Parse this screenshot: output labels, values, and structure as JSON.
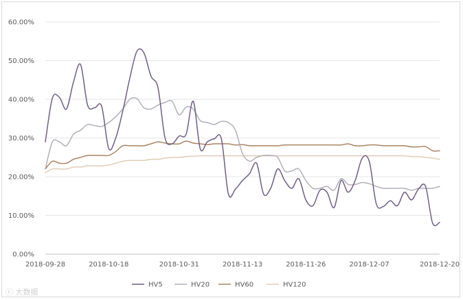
{
  "chart_data": {
    "type": "line",
    "x_labels": [
      "2018-09-28",
      "2018-10-18",
      "2018-10-31",
      "2018-11-13",
      "2018-11-26",
      "2018-12-07",
      "2018-12-20"
    ],
    "x_count": 57,
    "x_label_positions": [
      0,
      9,
      19,
      28,
      37,
      46,
      56
    ],
    "ylim": [
      0,
      60
    ],
    "y_ticks": [
      "0.00%",
      "10.00%",
      "20.00%",
      "30.00%",
      "40.00%",
      "50.00%",
      "60.00%"
    ],
    "grid": "horizontal",
    "legend_position": "bottom",
    "series": [
      {
        "name": "HV5",
        "color": "#6f5d82",
        "values": [
          29.0,
          40.3,
          40.5,
          37.5,
          44.5,
          49.0,
          38.5,
          37.8,
          38.2,
          27.3,
          30.0,
          37.0,
          45.5,
          52.4,
          52.0,
          46.0,
          43.0,
          30.0,
          28.5,
          30.5,
          31.0,
          39.5,
          27.2,
          29.0,
          29.8,
          29.8,
          15.5,
          16.8,
          19.0,
          20.8,
          23.5,
          15.5,
          17.0,
          22.0,
          19.0,
          17.0,
          19.5,
          14.0,
          12.5,
          16.5,
          16.0,
          12.0,
          19.0,
          16.0,
          19.0,
          24.8,
          24.0,
          13.0,
          12.3,
          13.8,
          12.5,
          16.0,
          14.0,
          16.8,
          17.5,
          8.0,
          8.2
        ]
      },
      {
        "name": "HV20",
        "color": "#b3aeb8",
        "values": [
          22.0,
          29.0,
          29.0,
          28.0,
          31.0,
          32.0,
          33.5,
          33.2,
          33.0,
          34.0,
          35.5,
          37.5,
          40.0,
          40.2,
          37.8,
          37.5,
          38.5,
          39.2,
          39.5,
          36.0,
          38.0,
          37.5,
          34.5,
          34.0,
          33.5,
          34.3,
          34.0,
          32.0,
          26.0,
          24.0,
          25.0,
          25.5,
          25.5,
          25.0,
          21.5,
          21.5,
          22.0,
          19.0,
          17.0,
          17.0,
          17.5,
          16.5,
          19.5,
          18.0,
          18.0,
          18.5,
          18.2,
          17.5,
          17.0,
          17.0,
          17.0,
          17.0,
          16.5,
          17.0,
          17.0,
          17.0,
          17.5
        ]
      },
      {
        "name": "HV60",
        "color": "#a88463",
        "values": [
          22.0,
          24.0,
          23.5,
          23.5,
          24.5,
          25.0,
          25.5,
          25.5,
          25.5,
          25.5,
          26.5,
          28.0,
          28.0,
          28.0,
          28.0,
          28.5,
          29.0,
          28.7,
          28.5,
          28.5,
          29.2,
          28.7,
          28.5,
          28.3,
          28.5,
          28.5,
          28.5,
          28.2,
          28.3,
          28.0,
          28.0,
          28.0,
          28.0,
          28.0,
          28.2,
          28.2,
          28.2,
          28.2,
          28.2,
          28.2,
          28.2,
          28.2,
          28.2,
          28.5,
          28.0,
          28.0,
          28.2,
          28.2,
          28.0,
          28.0,
          28.0,
          28.0,
          27.7,
          27.7,
          27.8,
          26.7,
          26.7
        ]
      },
      {
        "name": "HV120",
        "color": "#e0cdb8",
        "values": [
          21.0,
          22.0,
          22.0,
          22.0,
          22.5,
          22.5,
          22.8,
          22.8,
          22.8,
          23.0,
          23.5,
          24.0,
          24.2,
          24.2,
          24.2,
          24.5,
          24.5,
          24.8,
          25.0,
          25.0,
          25.2,
          25.3,
          25.4,
          25.4,
          25.4,
          25.4,
          25.4,
          25.4,
          25.4,
          25.4,
          25.4,
          25.4,
          25.4,
          25.4,
          25.4,
          25.4,
          25.4,
          25.4,
          25.4,
          25.4,
          25.4,
          25.4,
          25.4,
          25.4,
          25.4,
          25.4,
          25.4,
          25.4,
          25.4,
          25.4,
          25.4,
          25.4,
          25.2,
          25.2,
          25.0,
          24.8,
          24.5
        ]
      }
    ]
  },
  "watermark": "ⓒ 大数据"
}
